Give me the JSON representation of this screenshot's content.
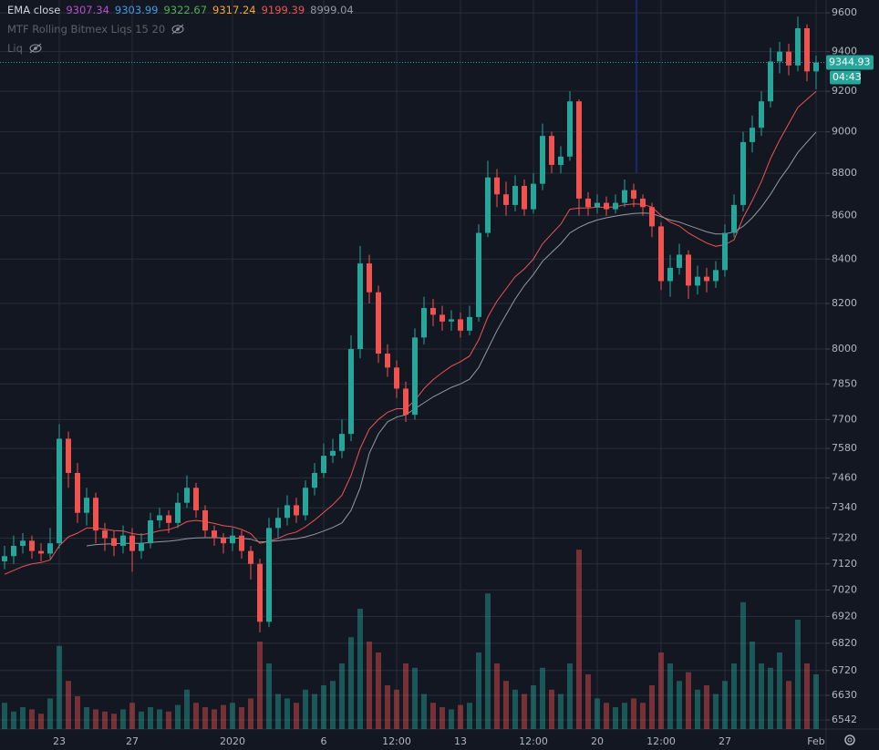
{
  "chart_data": {
    "type": "candlestick",
    "indicators": [
      {
        "title": "EMA close",
        "values": [
          9307.34,
          9303.99,
          9322.67,
          9317.24,
          9199.39,
          8999.04
        ],
        "colors": [
          "#b84fc9",
          "#3f9be6",
          "#4caf50",
          "#f7a531",
          "#ef5350",
          "#9598a1"
        ]
      },
      {
        "title": "MTF Rolling Bitmex Liqs 15 20"
      },
      {
        "title": "Liq"
      }
    ],
    "categories": [
      null,
      null,
      null,
      null,
      null,
      null,
      "23",
      null,
      null,
      null,
      null,
      null,
      null,
      null,
      "27",
      null,
      null,
      null,
      null,
      null,
      null,
      null,
      null,
      null,
      null,
      "2020",
      null,
      null,
      null,
      null,
      null,
      null,
      null,
      null,
      null,
      "6",
      null,
      null,
      null,
      null,
      null,
      null,
      null,
      "12:00",
      null,
      null,
      null,
      null,
      null,
      null,
      "13",
      null,
      null,
      null,
      null,
      null,
      null,
      null,
      "12:00",
      null,
      null,
      null,
      null,
      null,
      null,
      "20",
      null,
      null,
      null,
      null,
      null,
      null,
      "12:00",
      null,
      null,
      null,
      null,
      null,
      null,
      "27",
      null,
      null,
      null,
      null,
      null,
      null,
      null,
      null,
      null,
      "Feb"
    ],
    "open": [
      7130,
      7150,
      7190,
      7210,
      7170,
      7160,
      7200,
      7620,
      7480,
      7320,
      7380,
      7250,
      7220,
      7190,
      7230,
      7170,
      7200,
      7290,
      7310,
      7280,
      7360,
      7420,
      7330,
      7250,
      7220,
      7200,
      7230,
      7170,
      7120,
      6900,
      7260,
      7300,
      7350,
      7310,
      7420,
      7480,
      7550,
      7570,
      7640,
      8000,
      8380,
      8250,
      7980,
      7920,
      7830,
      7720,
      8050,
      8180,
      8150,
      8120,
      8130,
      8080,
      8140,
      8520,
      8780,
      8700,
      8650,
      8740,
      8630,
      8750,
      8980,
      8840,
      8880,
      9150,
      8680,
      8640,
      8660,
      8630,
      8660,
      8720,
      8680,
      8640,
      8550,
      8300,
      8360,
      8420,
      8280,
      8320,
      8300,
      8350,
      8520,
      8650,
      8950,
      9020,
      9150,
      9350,
      9400,
      9330,
      9520,
      9300
    ],
    "high": [
      7190,
      7230,
      7240,
      7230,
      7200,
      7260,
      7680,
      7650,
      7520,
      7420,
      7400,
      7280,
      7250,
      7270,
      7260,
      7240,
      7320,
      7340,
      7330,
      7400,
      7470,
      7440,
      7350,
      7270,
      7240,
      7260,
      7250,
      7190,
      7140,
      7300,
      7340,
      7390,
      7380,
      7450,
      7520,
      7600,
      7620,
      7700,
      8060,
      8460,
      8420,
      8280,
      8020,
      7950,
      7860,
      8090,
      8230,
      8220,
      8190,
      8170,
      8160,
      8190,
      8560,
      8860,
      8820,
      8760,
      8790,
      8770,
      8800,
      9040,
      9000,
      8930,
      9200,
      9160,
      8710,
      8700,
      8690,
      8700,
      8770,
      8750,
      8700,
      8660,
      8570,
      8420,
      8470,
      8440,
      8370,
      8360,
      8390,
      8560,
      8700,
      9000,
      9080,
      9200,
      9420,
      9450,
      9440,
      9580,
      9540,
      9380
    ],
    "low": [
      7100,
      7120,
      7160,
      7140,
      7130,
      7140,
      7180,
      7420,
      7280,
      7270,
      7200,
      7170,
      7150,
      7160,
      7090,
      7140,
      7180,
      7260,
      7240,
      7260,
      7340,
      7300,
      7220,
      7190,
      7160,
      7170,
      7140,
      7060,
      6860,
      6880,
      7220,
      7270,
      7280,
      7290,
      7390,
      7460,
      7520,
      7540,
      7610,
      7960,
      8200,
      7940,
      7880,
      7790,
      7690,
      7700,
      8020,
      8100,
      8080,
      8080,
      8050,
      8060,
      8120,
      8500,
      8640,
      8600,
      8620,
      8600,
      8610,
      8720,
      8800,
      8800,
      8860,
      8600,
      8600,
      8610,
      8600,
      8610,
      8640,
      8640,
      8600,
      8500,
      8260,
      8230,
      8330,
      8220,
      8240,
      8250,
      8270,
      8320,
      8500,
      8620,
      8900,
      8980,
      9120,
      9290,
      9280,
      9300,
      9250,
      9210
    ],
    "close": [
      7150,
      7190,
      7210,
      7170,
      7160,
      7200,
      7620,
      7480,
      7320,
      7380,
      7250,
      7220,
      7190,
      7230,
      7170,
      7200,
      7290,
      7310,
      7280,
      7360,
      7420,
      7330,
      7250,
      7220,
      7200,
      7230,
      7170,
      7120,
      6900,
      7260,
      7300,
      7350,
      7310,
      7420,
      7480,
      7550,
      7570,
      7640,
      8000,
      8380,
      8250,
      7980,
      7920,
      7830,
      7720,
      8050,
      8180,
      8150,
      8120,
      8130,
      8080,
      8140,
      8520,
      8780,
      8700,
      8650,
      8740,
      8630,
      8750,
      8980,
      8840,
      8880,
      9150,
      8680,
      8640,
      8660,
      8630,
      8660,
      8720,
      8680,
      8640,
      8550,
      8300,
      8360,
      8420,
      8280,
      8320,
      8300,
      8350,
      8520,
      8650,
      8950,
      9020,
      9150,
      9350,
      9400,
      9330,
      9520,
      9300,
      9344.93
    ],
    "volume": [
      12,
      8,
      10,
      9,
      7,
      14,
      38,
      22,
      15,
      10,
      9,
      8,
      7,
      9,
      12,
      8,
      10,
      9,
      8,
      11,
      18,
      12,
      10,
      9,
      11,
      12,
      10,
      14,
      40,
      30,
      16,
      14,
      12,
      18,
      16,
      20,
      22,
      30,
      42,
      55,
      40,
      35,
      20,
      18,
      30,
      28,
      16,
      12,
      10,
      9,
      11,
      12,
      35,
      62,
      30,
      22,
      18,
      16,
      20,
      28,
      18,
      16,
      30,
      82,
      25,
      14,
      12,
      10,
      12,
      14,
      12,
      20,
      35,
      30,
      22,
      26,
      18,
      20,
      16,
      22,
      30,
      58,
      40,
      30,
      28,
      35,
      22,
      50,
      30,
      25
    ],
    "vlim": [
      0,
      100
    ],
    "up_color": "#26a69a",
    "down_color": "#ef5350",
    "lines": [
      {
        "color": "#ef5350",
        "values": [
          7080,
          7095,
          7110,
          7120,
          7125,
          7135,
          7190,
          7225,
          7240,
          7260,
          7260,
          7255,
          7250,
          7248,
          7238,
          7233,
          7240,
          7249,
          7253,
          7266,
          7285,
          7290,
          7285,
          7278,
          7269,
          7265,
          7254,
          7238,
          7200,
          7208,
          7219,
          7235,
          7244,
          7265,
          7291,
          7322,
          7352,
          7390,
          7470,
          7580,
          7660,
          7700,
          7730,
          7745,
          7745,
          7780,
          7830,
          7868,
          7898,
          7926,
          7945,
          7970,
          8040,
          8140,
          8210,
          8265,
          8320,
          8355,
          8400,
          8470,
          8515,
          8560,
          8630,
          8636,
          8636,
          8640,
          8639,
          8641,
          8651,
          8655,
          8653,
          8640,
          8600,
          8570,
          8552,
          8520,
          8496,
          8473,
          8458,
          8466,
          8488,
          8590,
          8670,
          8760,
          8870,
          8960,
          9040,
          9120,
          9160,
          9199.39
        ]
      },
      {
        "color": "#9598a1",
        "values": [
          null,
          null,
          null,
          null,
          null,
          null,
          null,
          null,
          null,
          7190,
          7195,
          7197,
          7198,
          7200,
          7200,
          7200,
          7203,
          7206,
          7208,
          7212,
          7218,
          7221,
          7222,
          7222,
          7221,
          7221,
          7219,
          7216,
          7205,
          7207,
          7210,
          7215,
          7218,
          7225,
          7235,
          7248,
          7262,
          7280,
          7330,
          7420,
          7560,
          7640,
          7690,
          7710,
          7720,
          7745,
          7770,
          7795,
          7815,
          7835,
          7850,
          7870,
          7920,
          8000,
          8080,
          8150,
          8220,
          8280,
          8330,
          8390,
          8430,
          8470,
          8520,
          8545,
          8565,
          8580,
          8590,
          8598,
          8605,
          8610,
          8612,
          8610,
          8595,
          8580,
          8570,
          8555,
          8540,
          8525,
          8515,
          8515,
          8525,
          8550,
          8590,
          8640,
          8700,
          8770,
          8830,
          8900,
          8950,
          8999.04
        ]
      }
    ],
    "ylim": [
      6510,
      9667
    ],
    "log_scale": true,
    "grid": true,
    "yticks": [
      9600,
      9400,
      9200,
      9000,
      8800,
      8600,
      8400,
      8200,
      8000,
      7850,
      7700,
      7580,
      7460,
      7340,
      7220,
      7120,
      7020,
      6920,
      6820,
      6720,
      6630,
      6542
    ],
    "last_price": 9344.93,
    "countdown": "04:43"
  }
}
